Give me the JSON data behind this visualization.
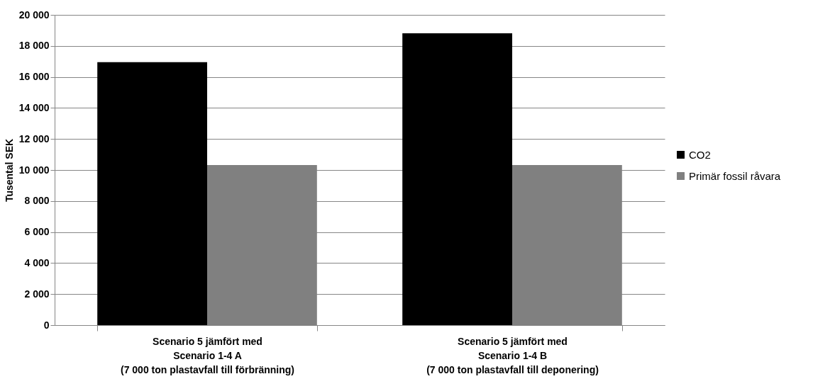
{
  "chart_data": {
    "type": "bar",
    "ylabel": "Tusental SEK",
    "categories": [
      "Scenario 5 jämfört med\nScenario 1-4  A\n(7 000 ton plastavfall till förbränning)",
      "Scenario 5 jämfört med\nScenario 1-4 B\n(7 000 ton plastavfall till deponering)"
    ],
    "series": [
      {
        "name": "CO2",
        "color": "#000000",
        "values": [
          16950,
          18810
        ]
      },
      {
        "name": "Primär fossil råvara",
        "color": "#808080",
        "values": [
          10320,
          10320
        ]
      }
    ],
    "ylim": [
      0,
      20000
    ],
    "yticks": [
      {
        "value": 0,
        "label": "0"
      },
      {
        "value": 2000,
        "label": "2 000"
      },
      {
        "value": 4000,
        "label": "4 000"
      },
      {
        "value": 6000,
        "label": "6 000"
      },
      {
        "value": 8000,
        "label": "8 000"
      },
      {
        "value": 10000,
        "label": "10 000"
      },
      {
        "value": 12000,
        "label": "12 000"
      },
      {
        "value": 14000,
        "label": "14 000"
      },
      {
        "value": 16000,
        "label": "16 000"
      },
      {
        "value": 18000,
        "label": "18 000"
      },
      {
        "value": 20000,
        "label": "20 000"
      }
    ],
    "grid": "y",
    "legend": "right"
  }
}
